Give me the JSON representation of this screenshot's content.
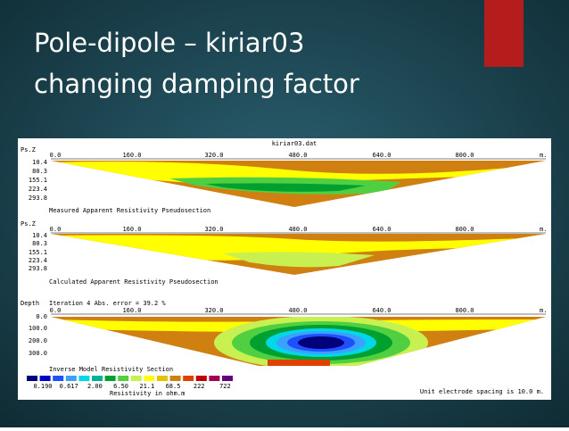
{
  "slide": {
    "title_lines": [
      "Pole-dipole – kiriar03",
      "changing damping factor"
    ]
  },
  "figure": {
    "file": "kiriar03.dat",
    "unit": "m.",
    "x_ticks": [
      "0.0",
      "160.0",
      "320.0",
      "480.0",
      "640.0",
      "800.0"
    ],
    "panels": [
      {
        "axis_label": "Ps.Z",
        "depths": [
          "10.4",
          "80.3",
          "155.1",
          "223.4",
          "293.8"
        ],
        "caption": "Measured Apparent Resistivity Pseudosection"
      },
      {
        "axis_label": "Ps.Z",
        "depths": [
          "10.4",
          "80.3",
          "155.1",
          "223.4",
          "293.8"
        ],
        "caption": "Calculated Apparent Resistivity Pseudosection"
      },
      {
        "axis_label": "Depth",
        "header": "Iteration 4 Abs. error = 39.2 %",
        "depths": [
          "0.0",
          "100.0",
          "200.0",
          "300.0"
        ],
        "caption": "Inverse Model Resistivity Section"
      }
    ],
    "legend": {
      "colors": [
        "#00007a",
        "#0000c8",
        "#1e50ff",
        "#3ca0ff",
        "#00d8e8",
        "#00b09a",
        "#00a030",
        "#50d040",
        "#c8f050",
        "#ffff00",
        "#e8c000",
        "#d08010",
        "#e04000",
        "#c00000",
        "#a00050",
        "#600080"
      ],
      "values": [
        "0.190",
        "0.617",
        "2.00",
        "6.50",
        "21.1",
        "68.5",
        "222",
        "722"
      ],
      "unit_label": "Resistivity in ohm.m"
    },
    "note": "Unit electrode spacing is 10.0 m."
  }
}
